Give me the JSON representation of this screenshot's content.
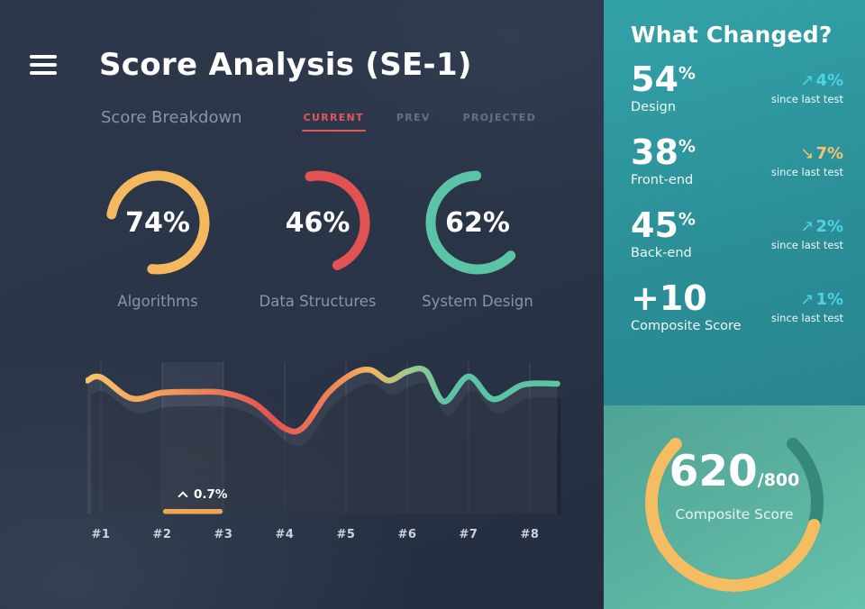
{
  "palette": {
    "navy_bg": "#2a3447",
    "accent_red": "#e45858",
    "gauge_yellow": "#f4b95e",
    "gauge_red": "#e35252",
    "gauge_teal": "#5bc4a7",
    "delta_up": "#4ed3e6",
    "delta_down": "#f4c571",
    "sidebar_teal": "#2d939b",
    "panel_green": "#5aad9b",
    "annotation_bar": "#f2a455"
  },
  "main": {
    "title": "Score Analysis (SE-1)",
    "subtitle": "Score Breakdown",
    "tabs": [
      {
        "label": "CURRENT",
        "active": true
      },
      {
        "label": "PREV",
        "active": false
      },
      {
        "label": "PROJECTED",
        "active": false
      }
    ],
    "gauges": [
      {
        "label": "Algorithms",
        "percent": 74,
        "display": "74%",
        "color": "#f4b95e"
      },
      {
        "label": "Data Structures",
        "percent": 46,
        "display": "46%",
        "color": "#e35252"
      },
      {
        "label": "System Design",
        "percent": 62,
        "display": "62%",
        "color": "#5bc4a7"
      }
    ]
  },
  "chart_data": {
    "type": "line",
    "title": "Score Breakdown",
    "categories": [
      "#1",
      "#2",
      "#3",
      "#4",
      "#5",
      "#6",
      "#7",
      "#8"
    ],
    "ylim": [
      0,
      100
    ],
    "grid": "vertical",
    "series": [
      {
        "name": "current",
        "points": [
          [
            0.78,
            82
          ],
          [
            1.0,
            84
          ],
          [
            1.5,
            71
          ],
          [
            2.0,
            74.5
          ],
          [
            2.5,
            75
          ],
          [
            3.0,
            74.5
          ],
          [
            3.5,
            68
          ],
          [
            4.0,
            52.5
          ],
          [
            4.3,
            53
          ],
          [
            4.7,
            74
          ],
          [
            5.1,
            86
          ],
          [
            5.4,
            88.5
          ],
          [
            5.7,
            82
          ],
          [
            6.0,
            87.5
          ],
          [
            6.3,
            88
          ],
          [
            6.6,
            69
          ],
          [
            7.0,
            84.5
          ],
          [
            7.4,
            70.5
          ],
          [
            7.9,
            79.5
          ],
          [
            8.45,
            80
          ]
        ]
      }
    ],
    "annotation": {
      "text": "0.7%",
      "direction": "up",
      "span": [
        2,
        3
      ]
    },
    "gradient_colors": [
      "#f6c468",
      "#f09a58",
      "#e35252",
      "#ee8456",
      "#f2b45f",
      "#9fca8e",
      "#5bc4a7"
    ]
  },
  "sidebar": {
    "title": "What Changed?",
    "items": [
      {
        "value": "54",
        "unit": "%",
        "label": "Design",
        "delta": "4%",
        "direction": "up",
        "note": "since last test"
      },
      {
        "value": "38",
        "unit": "%",
        "label": "Front-end",
        "delta": "7%",
        "direction": "down",
        "note": "since last test"
      },
      {
        "value": "45",
        "unit": "%",
        "label": "Back-end",
        "delta": "2%",
        "direction": "up",
        "note": "since last test"
      },
      {
        "value": "+10",
        "unit": "",
        "label": "Composite Score",
        "delta": "1%",
        "direction": "up",
        "note": "since last test"
      }
    ],
    "composite": {
      "score": 620,
      "max": 800,
      "score_display": "620",
      "max_display": "/800",
      "label": "Composite Score",
      "color": "#f4bd62",
      "track_color": "#35897c"
    }
  }
}
